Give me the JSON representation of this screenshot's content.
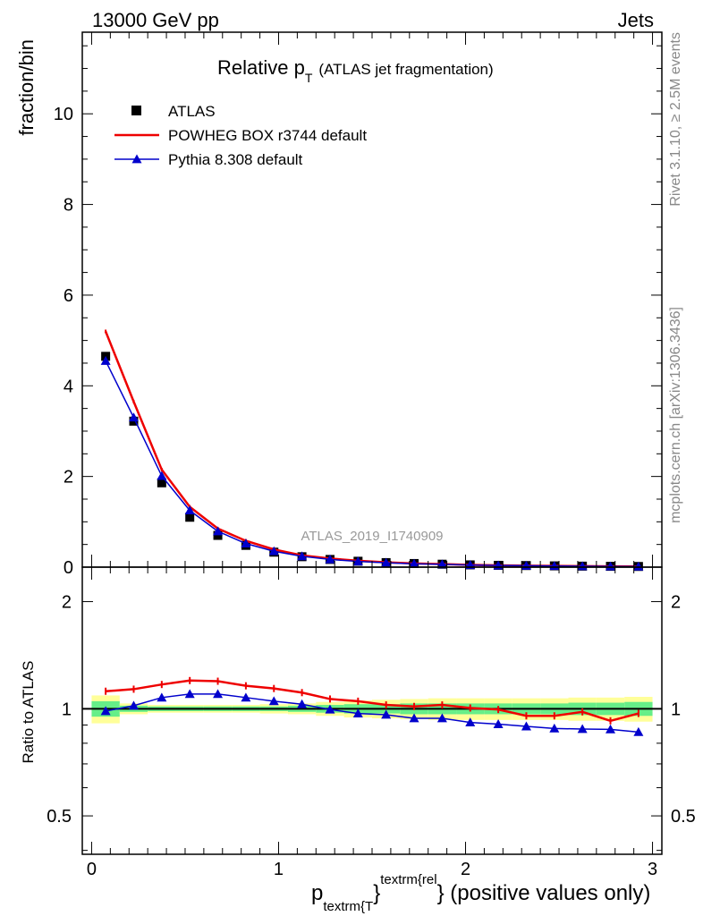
{
  "header": {
    "left": "13000 GeV pp",
    "right": "Jets"
  },
  "side_text": {
    "rivet": "Rivet 3.1.10, ≥ 2.5M events",
    "mcplots": "mcplots.cern.ch [arXiv:1306.3436]"
  },
  "chart_data": [
    {
      "type": "scatter",
      "panel": "main",
      "title_main": "Relative p",
      "title_sub": "T",
      "title_suffix": "(ATLAS jet fragmentation)",
      "analysis_label": "ATLAS_2019_I1740909",
      "ylabel": "fraction/bin",
      "xlim": [
        -0.05,
        3.05
      ],
      "ylim": [
        0,
        11.8
      ],
      "yticks": [
        0,
        2,
        4,
        6,
        8,
        10
      ],
      "legend_position": "top-left",
      "series": [
        {
          "name": "ATLAS",
          "marker": "square",
          "color": "#000000",
          "x": [
            0.075,
            0.225,
            0.375,
            0.525,
            0.675,
            0.825,
            0.975,
            1.125,
            1.275,
            1.425,
            1.575,
            1.725,
            1.875,
            2.025,
            2.175,
            2.325,
            2.475,
            2.625,
            2.775,
            2.925
          ],
          "values": [
            4.65,
            3.22,
            1.86,
            1.1,
            0.7,
            0.48,
            0.33,
            0.23,
            0.17,
            0.13,
            0.1,
            0.08,
            0.065,
            0.05,
            0.04,
            0.035,
            0.028,
            0.022,
            0.018,
            0.015
          ]
        },
        {
          "name": "POWHEG BOX r3744 default",
          "marker": "line",
          "color": "#ee0000",
          "x": [
            0.075,
            0.225,
            0.375,
            0.525,
            0.675,
            0.825,
            0.975,
            1.125,
            1.275,
            1.425,
            1.575,
            1.725,
            1.875,
            2.025,
            2.175,
            2.325,
            2.475,
            2.625,
            2.775,
            2.925
          ],
          "values": [
            5.2,
            3.65,
            2.15,
            1.33,
            0.85,
            0.58,
            0.39,
            0.26,
            0.19,
            0.14,
            0.105,
            0.082,
            0.067,
            0.05,
            0.04,
            0.033,
            0.027,
            0.021,
            0.017,
            0.014
          ]
        },
        {
          "name": "Pythia 8.308 default",
          "marker": "triangle",
          "color": "#0000cc",
          "x": [
            0.075,
            0.225,
            0.375,
            0.525,
            0.675,
            0.825,
            0.975,
            1.125,
            1.275,
            1.425,
            1.575,
            1.725,
            1.875,
            2.025,
            2.175,
            2.325,
            2.475,
            2.625,
            2.775,
            2.925
          ],
          "values": [
            4.55,
            3.3,
            2.01,
            1.25,
            0.79,
            0.52,
            0.35,
            0.24,
            0.17,
            0.125,
            0.095,
            0.075,
            0.061,
            0.046,
            0.036,
            0.031,
            0.025,
            0.019,
            0.016,
            0.013
          ]
        }
      ]
    },
    {
      "type": "line",
      "panel": "ratio",
      "ylabel": "Ratio to ATLAS",
      "xlabel_main": "p",
      "xlabel_sub": "textrm{T",
      "xlabel_sup": "textrm{rel",
      "xlabel_brace": "}",
      "xlabel_suffix": "} (positive values only)",
      "xlim": [
        -0.05,
        3.05
      ],
      "ylim": [
        0.39,
        2.5
      ],
      "log_y": true,
      "yticks": [
        0.5,
        1,
        2
      ],
      "ytick_labels": [
        "0.5",
        "1",
        "2"
      ],
      "xticks": [
        0,
        1,
        2,
        3
      ],
      "xtick_labels": [
        "0",
        "1",
        "2",
        "3"
      ],
      "band_edges": [
        0.0,
        0.15,
        0.3,
        0.45,
        0.6,
        0.75,
        0.9,
        1.05,
        1.2,
        1.35,
        1.5,
        1.65,
        1.8,
        1.95,
        2.1,
        2.25,
        2.4,
        2.55,
        2.7,
        2.85,
        3.0
      ],
      "band_stat": [
        0.05,
        0.02,
        0.015,
        0.015,
        0.015,
        0.015,
        0.015,
        0.02,
        0.025,
        0.03,
        0.03,
        0.035,
        0.035,
        0.035,
        0.035,
        0.035,
        0.035,
        0.04,
        0.04,
        0.045
      ],
      "band_total": [
        0.09,
        0.035,
        0.025,
        0.025,
        0.025,
        0.025,
        0.03,
        0.035,
        0.045,
        0.055,
        0.06,
        0.065,
        0.07,
        0.07,
        0.07,
        0.07,
        0.07,
        0.075,
        0.075,
        0.08
      ],
      "band_colors": {
        "stat": "#66ee88",
        "total": "#ffff99"
      },
      "series": [
        {
          "name": "POWHEG BOX r3744 default",
          "color": "#ee0000",
          "x": [
            0.075,
            0.225,
            0.375,
            0.525,
            0.675,
            0.825,
            0.975,
            1.125,
            1.275,
            1.425,
            1.575,
            1.725,
            1.875,
            2.025,
            2.175,
            2.325,
            2.475,
            2.625,
            2.775,
            2.925
          ],
          "values": [
            1.12,
            1.135,
            1.17,
            1.2,
            1.195,
            1.16,
            1.14,
            1.11,
            1.065,
            1.05,
            1.025,
            1.015,
            1.025,
            1.005,
            0.995,
            0.955,
            0.955,
            0.98,
            0.925,
            0.97
          ]
        },
        {
          "name": "Pythia 8.308 default",
          "color": "#0000cc",
          "x": [
            0.075,
            0.225,
            0.375,
            0.525,
            0.675,
            0.825,
            0.975,
            1.125,
            1.275,
            1.425,
            1.575,
            1.725,
            1.875,
            2.025,
            2.175,
            2.325,
            2.475,
            2.625,
            2.775,
            2.925
          ],
          "values": [
            0.985,
            1.02,
            1.075,
            1.1,
            1.1,
            1.075,
            1.05,
            1.03,
            0.995,
            0.97,
            0.962,
            0.94,
            0.94,
            0.915,
            0.905,
            0.892,
            0.88,
            0.877,
            0.875,
            0.86
          ]
        }
      ]
    }
  ]
}
